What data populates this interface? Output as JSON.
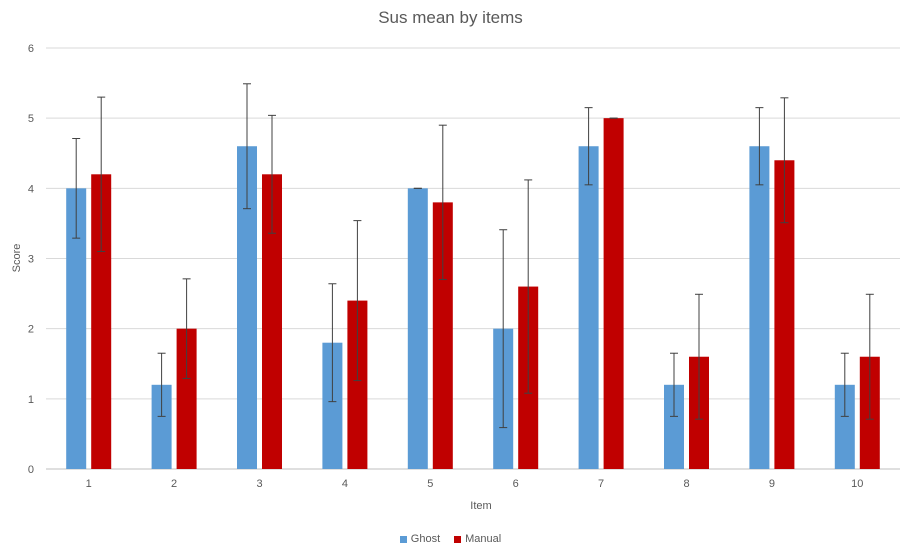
{
  "chart_data": {
    "type": "bar",
    "title": "Sus mean by items",
    "xlabel": "Item",
    "ylabel": "Score",
    "ylim": [
      0,
      6
    ],
    "yticks": [
      0,
      1,
      2,
      3,
      4,
      5,
      6
    ],
    "grid": true,
    "legend_position": "bottom",
    "categories": [
      "1",
      "2",
      "3",
      "4",
      "5",
      "6",
      "7",
      "8",
      "9",
      "10"
    ],
    "series": [
      {
        "name": "Ghost",
        "color": "#5B9BD5",
        "values": [
          4.0,
          1.2,
          4.6,
          1.8,
          4.0,
          2.0,
          4.6,
          1.2,
          4.6,
          1.2
        ],
        "error": [
          0.71,
          0.45,
          0.89,
          0.84,
          0.0,
          1.41,
          0.55,
          0.45,
          0.55,
          0.45
        ]
      },
      {
        "name": "Manual",
        "color": "#C00000",
        "values": [
          4.2,
          2.0,
          4.2,
          2.4,
          3.8,
          2.6,
          5.0,
          1.6,
          4.4,
          1.6
        ],
        "error": [
          1.1,
          0.71,
          0.84,
          1.14,
          1.1,
          1.52,
          0.0,
          0.89,
          0.89,
          0.89
        ]
      }
    ]
  }
}
